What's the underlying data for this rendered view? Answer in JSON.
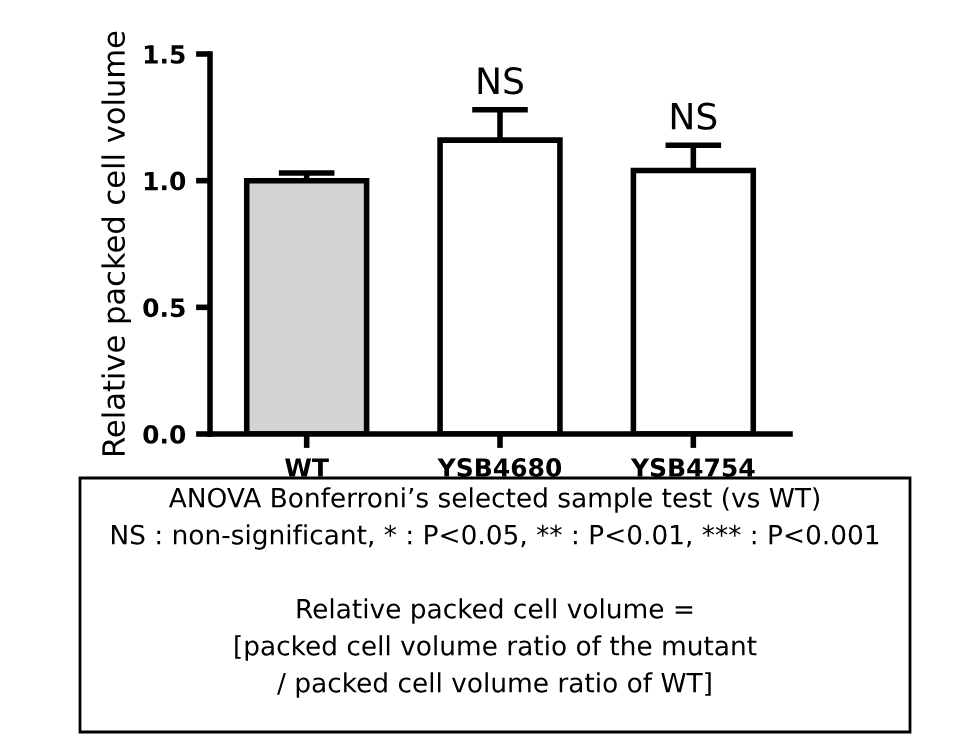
{
  "chart_data": {
    "type": "bar",
    "ylabel": "Relative packed cell volume",
    "categories": [
      "WT",
      "YSB4680",
      "YSB4754"
    ],
    "values": [
      1.0,
      1.16,
      1.04
    ],
    "errors": [
      0.03,
      0.12,
      0.1
    ],
    "colors": [
      "#d3d3d3",
      "#ffffff",
      "#ffffff"
    ],
    "ylim": [
      0,
      1.5
    ],
    "yticks": [
      {
        "value": 0,
        "label": "0.0"
      },
      {
        "value": 0.5,
        "label": "0.5"
      },
      {
        "value": 1.0,
        "label": "1.0"
      },
      {
        "value": 1.5,
        "label": "1.5"
      }
    ],
    "grid": false,
    "legend": false,
    "annotations": [
      "NS",
      "NS",
      "ANOVA Bonferroni’s selected sample test (vs WT)",
      "NS : non-significant, * : P<0.05, ** : P<0.01, *** : P<0.001",
      "Relative packed cell volume =",
      "[packed cell volume ratio of the mutant",
      "/ packed cell volume ratio of WT]"
    ]
  }
}
